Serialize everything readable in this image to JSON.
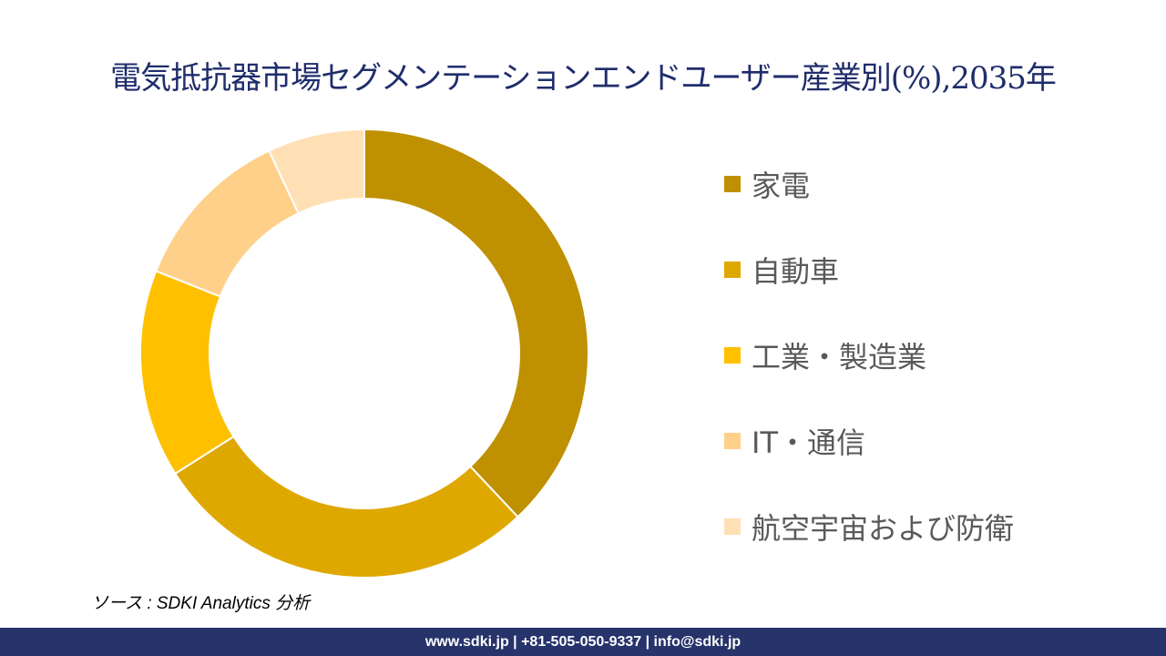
{
  "chart_data": {
    "type": "pie",
    "title": "電気抵抗器市場セグメンテーションエンドユーザー産業別(%),2035年",
    "categories": [
      "家電",
      "自動車",
      "工業・製造業",
      "IT・通信",
      "航空宇宙および防衛"
    ],
    "values": [
      38,
      28,
      15,
      12,
      7
    ],
    "colors": [
      "#BF9000",
      "#DFA800",
      "#FFC000",
      "#FFD08A",
      "#FFE0B5"
    ],
    "donut": true,
    "legend_position": "right"
  },
  "source": "ソース : SDKI Analytics 分析",
  "footer": "www.sdki.jp | +81-505-050-9337 | info@sdki.jp"
}
